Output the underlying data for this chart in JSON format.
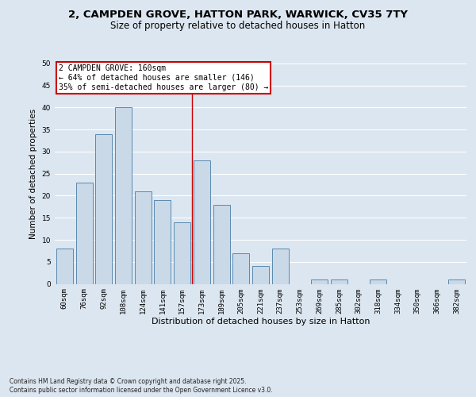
{
  "title_line1": "2, CAMPDEN GROVE, HATTON PARK, WARWICK, CV35 7TY",
  "title_line2": "Size of property relative to detached houses in Hatton",
  "xlabel": "Distribution of detached houses by size in Hatton",
  "ylabel": "Number of detached properties",
  "categories": [
    "60sqm",
    "76sqm",
    "92sqm",
    "108sqm",
    "124sqm",
    "141sqm",
    "157sqm",
    "173sqm",
    "189sqm",
    "205sqm",
    "221sqm",
    "237sqm",
    "253sqm",
    "269sqm",
    "285sqm",
    "302sqm",
    "318sqm",
    "334sqm",
    "350sqm",
    "366sqm",
    "382sqm"
  ],
  "values": [
    8,
    23,
    34,
    40,
    21,
    19,
    14,
    28,
    18,
    7,
    4,
    8,
    0,
    1,
    1,
    0,
    1,
    0,
    0,
    0,
    1
  ],
  "bar_color": "#c9d9e8",
  "bar_edge_color": "#5a8ab0",
  "background_color": "#dce6f0",
  "fig_background_color": "#dce6f0",
  "grid_color": "#ffffff",
  "vline_x_index": 6.5,
  "vline_color": "#cc0000",
  "annotation_text": "2 CAMPDEN GROVE: 160sqm\n← 64% of detached houses are smaller (146)\n35% of semi-detached houses are larger (80) →",
  "annotation_box_color": "#cc0000",
  "ylim": [
    0,
    50
  ],
  "yticks": [
    0,
    5,
    10,
    15,
    20,
    25,
    30,
    35,
    40,
    45,
    50
  ],
  "footnote_line1": "Contains HM Land Registry data © Crown copyright and database right 2025.",
  "footnote_line2": "Contains public sector information licensed under the Open Government Licence v3.0.",
  "title_fontsize": 9.5,
  "subtitle_fontsize": 8.5,
  "axis_label_fontsize": 8,
  "tick_fontsize": 6.5,
  "annotation_fontsize": 7,
  "footnote_fontsize": 5.5,
  "ylabel_fontsize": 7.5
}
